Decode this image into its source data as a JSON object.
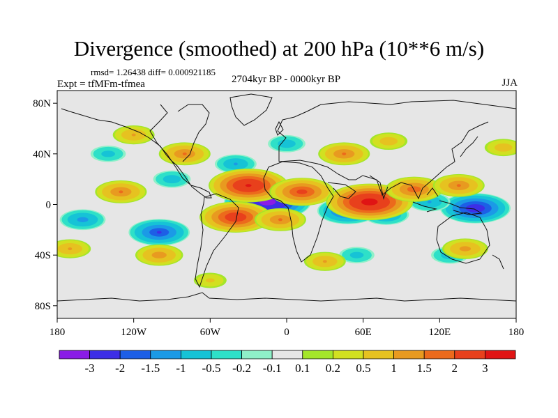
{
  "title": "Divergence (smoothed) at 200 hPa (10**6 m/s)",
  "stats": "rmsd= 1.26438 diff= 0.000921185",
  "expt": "Expt = tfMFm-tfmea",
  "period": "2704kyr BP - 0000kyr BP",
  "season": "JJA",
  "chart_data": {
    "type": "heatmap",
    "variable": "Divergence (smoothed) at 200 hPa",
    "units": "10**6 m/s",
    "x_range": [
      -180,
      180
    ],
    "y_range": [
      -90,
      90
    ],
    "x_ticks": [
      {
        "value": -180,
        "label": "180"
      },
      {
        "value": -120,
        "label": "120W"
      },
      {
        "value": -60,
        "label": "60W"
      },
      {
        "value": 0,
        "label": "0"
      },
      {
        "value": 60,
        "label": "60E"
      },
      {
        "value": 120,
        "label": "120E"
      },
      {
        "value": 180,
        "label": "180"
      }
    ],
    "y_ticks": [
      {
        "value": 80,
        "label": "80N"
      },
      {
        "value": 40,
        "label": "40N"
      },
      {
        "value": 0,
        "label": "0"
      },
      {
        "value": -40,
        "label": "40S"
      },
      {
        "value": -80,
        "label": "80S"
      }
    ],
    "colorbar": {
      "colors": [
        "#8a1ce6",
        "#3d2ee6",
        "#1d5fe6",
        "#1b9ae6",
        "#16c3d6",
        "#2ee0c8",
        "#8ff0c8",
        "#e6e6e6",
        "#a4e62a",
        "#d2e021",
        "#e6c220",
        "#e89a20",
        "#ec6a1c",
        "#e8401c",
        "#e01414"
      ],
      "levels": [
        "-3",
        "-2",
        "-1.5",
        "-1",
        "-0.5",
        "-0.2",
        "-0.1",
        "0.1",
        "0.2",
        "0.5",
        "1",
        "1.5",
        "2",
        "3"
      ]
    },
    "features": [
      {
        "lon": -15,
        "lat": 2,
        "value": -3.4
      },
      {
        "lon": -100,
        "lat": -22,
        "value": -2.0
      },
      {
        "lon": -160,
        "lat": -12,
        "value": -1.2
      },
      {
        "lon": -40,
        "lat": 32,
        "value": -1.0
      },
      {
        "lon": -90,
        "lat": 20,
        "value": -0.8
      },
      {
        "lon": 48,
        "lat": -5,
        "value": -2.0
      },
      {
        "lon": 78,
        "lat": -8,
        "value": -1.2
      },
      {
        "lon": 148,
        "lat": -3,
        "value": -2.5
      },
      {
        "lon": 112,
        "lat": 2,
        "value": -1.0
      },
      {
        "lon": 0,
        "lat": 48,
        "value": -0.8
      },
      {
        "lon": 128,
        "lat": -40,
        "value": -0.8
      },
      {
        "lon": 55,
        "lat": -40,
        "value": -0.7
      },
      {
        "lon": -140,
        "lat": 40,
        "value": -0.7
      },
      {
        "lon": -30,
        "lat": 15,
        "value": 3.0
      },
      {
        "lon": -40,
        "lat": -10,
        "value": 2.6
      },
      {
        "lon": 12,
        "lat": 10,
        "value": 2.2
      },
      {
        "lon": -5,
        "lat": -12,
        "value": 1.5
      },
      {
        "lon": 65,
        "lat": 2,
        "value": 3.4
      },
      {
        "lon": 100,
        "lat": 12,
        "value": 1.8
      },
      {
        "lon": 135,
        "lat": 15,
        "value": 1.5
      },
      {
        "lon": -130,
        "lat": 10,
        "value": 1.5
      },
      {
        "lon": -80,
        "lat": 40,
        "value": 1.5
      },
      {
        "lon": 45,
        "lat": 40,
        "value": 1.5
      },
      {
        "lon": -100,
        "lat": -40,
        "value": 1.3
      },
      {
        "lon": -170,
        "lat": -35,
        "value": 1.0
      },
      {
        "lon": 140,
        "lat": -35,
        "value": 1.2
      },
      {
        "lon": 30,
        "lat": -45,
        "value": 1.0
      },
      {
        "lon": -120,
        "lat": 55,
        "value": 1.0
      },
      {
        "lon": 80,
        "lat": 50,
        "value": 0.8
      },
      {
        "lon": 170,
        "lat": 45,
        "value": 0.8
      },
      {
        "lon": -60,
        "lat": -60,
        "value": 0.6
      }
    ]
  }
}
